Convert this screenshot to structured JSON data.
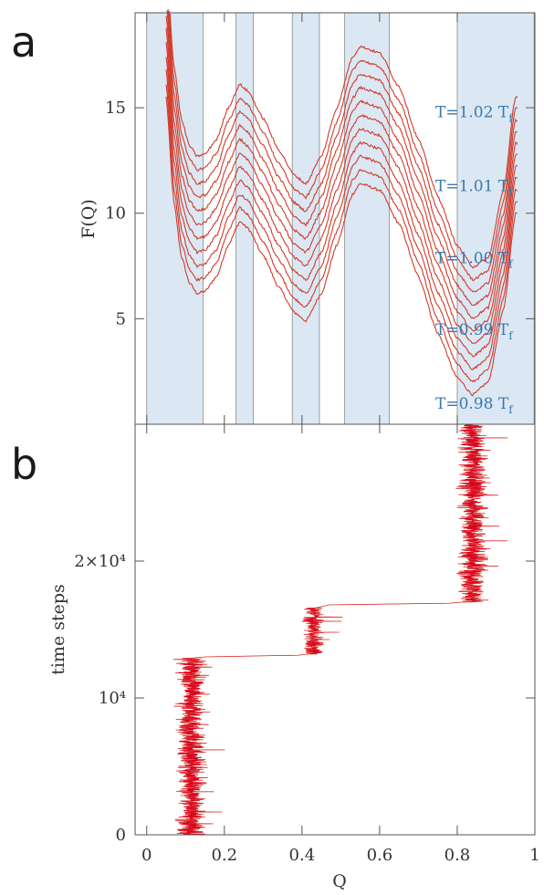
{
  "colors": {
    "shade": "#dbe8f4",
    "curve": "#d23a2a",
    "trace": "#d8001e",
    "trace_edge": "#e8a030",
    "axis": "#555555",
    "temp_label": "#3a78b0"
  },
  "chart_data": [
    {
      "panel": "a",
      "type": "line",
      "ylabel": "F(Q)",
      "xlim": [
        -0.03,
        1.0
      ],
      "ylim": [
        0,
        19.5
      ],
      "x_ticks": [
        0,
        0.2,
        0.4,
        0.6,
        0.8,
        1
      ],
      "y_ticks": [
        5,
        10,
        15
      ],
      "y_tick_labels": [
        "5",
        "10",
        "15"
      ],
      "shaded_bands": [
        [
          0.0,
          0.145
        ],
        [
          0.23,
          0.275
        ],
        [
          0.375,
          0.445
        ],
        [
          0.51,
          0.625
        ],
        [
          0.8,
          0.998
        ]
      ],
      "base_curve": {
        "x": [
          0.05,
          0.07,
          0.09,
          0.11,
          0.13,
          0.15,
          0.18,
          0.21,
          0.24,
          0.26,
          0.3,
          0.34,
          0.38,
          0.41,
          0.45,
          0.49,
          0.53,
          0.55,
          0.6,
          0.65,
          0.7,
          0.75,
          0.8,
          0.84,
          0.88,
          0.92,
          0.95
        ],
        "y": [
          15.5,
          10.5,
          7.9,
          6.7,
          6.2,
          6.3,
          7.0,
          8.5,
          9.6,
          9.3,
          8.0,
          6.5,
          5.3,
          4.9,
          6.2,
          8.5,
          10.9,
          11.4,
          11.1,
          9.5,
          7.0,
          4.3,
          2.2,
          1.4,
          2.0,
          5.5,
          10.0
        ]
      },
      "series": [
        {
          "offset": 0.0
        },
        {
          "offset": 0.65
        },
        {
          "offset": 1.3
        },
        {
          "offset": 1.95
        },
        {
          "offset": 2.6
        },
        {
          "offset": 3.25
        },
        {
          "offset": 3.9
        },
        {
          "offset": 4.55
        },
        {
          "offset": 5.2
        },
        {
          "offset": 5.85
        },
        {
          "offset": 6.5
        }
      ],
      "annotations": [
        {
          "text": "T=1.02",
          "sub": "T",
          "subscript": "f",
          "y": 14.8
        },
        {
          "text": "T=1.01",
          "sub": "T",
          "subscript": "f",
          "y": 11.3
        },
        {
          "text": "T=1.00",
          "sub": "T",
          "subscript": "f",
          "y": 7.9
        },
        {
          "text": "T=0.99",
          "sub": "T",
          "subscript": "f",
          "y": 4.5
        },
        {
          "text": "T=0.98",
          "sub": "T",
          "subscript": "f",
          "y": 1.0
        }
      ]
    },
    {
      "panel": "b",
      "type": "line",
      "xlabel": "Q",
      "ylabel": "time steps",
      "xlim": [
        -0.03,
        1.0
      ],
      "ylim": [
        0,
        30000
      ],
      "x_ticks": [
        0,
        0.2,
        0.4,
        0.6,
        0.8,
        1
      ],
      "x_tick_labels": [
        "0",
        "0.2",
        "0.4",
        "0.6",
        "0.8",
        "1"
      ],
      "y_ticks": [
        0,
        10000,
        20000
      ],
      "y_tick_labels": [
        "0",
        "10⁴",
        "2×10⁴"
      ],
      "segments": [
        {
          "t_start": 0,
          "t_end": 12900,
          "q_center": 0.115,
          "q_spread": 0.05
        },
        {
          "t_start": 13200,
          "t_end": 16600,
          "q_center": 0.43,
          "q_spread": 0.035
        },
        {
          "t_start": 17000,
          "t_end": 30000,
          "q_center": 0.84,
          "q_spread": 0.05
        }
      ],
      "transitions": [
        {
          "t": 13000,
          "q_from": 0.15,
          "q_to": 0.39
        },
        {
          "t": 16800,
          "q_from": 0.47,
          "q_to": 0.78
        }
      ]
    }
  ]
}
